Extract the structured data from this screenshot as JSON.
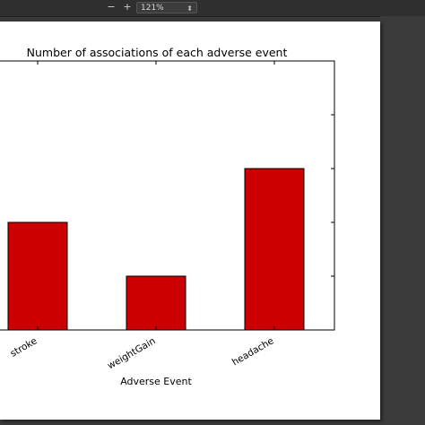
{
  "toolbar": {
    "zoom_out_label": "−",
    "zoom_in_label": "+",
    "zoom_value": "121%",
    "zoom_caret": "⬍"
  },
  "chart_data": {
    "type": "bar",
    "title": "Number of associations of each adverse event",
    "xlabel": "Adverse Event",
    "ylabel": "",
    "categories": [
      "stroke",
      "weightGain",
      "headache"
    ],
    "values": [
      2,
      1,
      3
    ],
    "ylim": [
      0,
      5
    ],
    "grid": false,
    "colors": {
      "bar": "#cc0000",
      "bar_edge": "#000000"
    }
  }
}
